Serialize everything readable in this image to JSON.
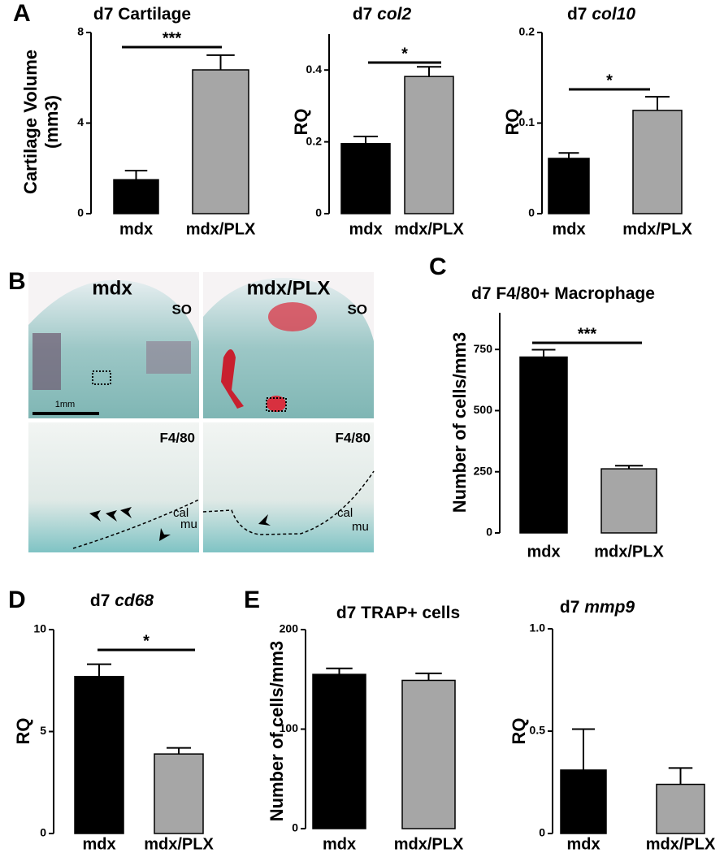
{
  "panels": [
    "A",
    "B",
    "C",
    "D",
    "E"
  ],
  "histology": {
    "columns": [
      "mdx",
      "mdx/PLX"
    ],
    "stain_top": "SO",
    "stain_bottom": "F4/80",
    "scale_bar": "1mm",
    "labels": [
      "cal",
      "mu"
    ]
  },
  "chart_data": [
    {
      "type": "bar",
      "title": "d7 Cartilage",
      "ylabel": [
        "Cartilage Volume",
        "(mm3)"
      ],
      "categories": [
        "mdx",
        "mdx/PLX"
      ],
      "values": [
        1.5,
        6.35
      ],
      "errors": [
        0.4,
        0.65
      ],
      "colors": [
        "#000000",
        "#a6a6a6"
      ],
      "ylim": [
        0,
        8
      ],
      "yticks": [
        0,
        4,
        8
      ],
      "significance": "***"
    },
    {
      "type": "bar",
      "title": "d7",
      "gene": "col2",
      "ylabel": [
        "RQ"
      ],
      "categories": [
        "mdx",
        "mdx/PLX"
      ],
      "values": [
        0.195,
        0.382
      ],
      "errors": [
        0.02,
        0.027
      ],
      "colors": [
        "#000000",
        "#a6a6a6"
      ],
      "ylim": [
        0,
        0.5
      ],
      "yticks": [
        0,
        0.2,
        0.4
      ],
      "significance": "*"
    },
    {
      "type": "bar",
      "title": "d7",
      "gene": "col10",
      "ylabel": [
        "RQ"
      ],
      "categories": [
        "mdx",
        "mdx/PLX"
      ],
      "values": [
        0.061,
        0.114
      ],
      "errors": [
        0.006,
        0.015
      ],
      "colors": [
        "#000000",
        "#a6a6a6"
      ],
      "ylim": [
        0,
        0.2
      ],
      "yticks": [
        0,
        0.1,
        0.2
      ],
      "significance": "*"
    },
    {
      "type": "bar",
      "title": "d7 F4/80+ Macrophage",
      "ylabel": [
        "Number of cells/mm3"
      ],
      "categories": [
        "mdx",
        "mdx/PLX"
      ],
      "values": [
        719,
        262
      ],
      "errors": [
        30,
        13
      ],
      "colors": [
        "#000000",
        "#a6a6a6"
      ],
      "ylim": [
        0,
        900
      ],
      "yticks": [
        0,
        250,
        500,
        750
      ],
      "significance": "***"
    },
    {
      "type": "bar",
      "title": "d7",
      "gene": "cd68",
      "ylabel": [
        "RQ"
      ],
      "categories": [
        "mdx",
        "mdx/PLX"
      ],
      "values": [
        7.7,
        3.9
      ],
      "errors": [
        0.6,
        0.3
      ],
      "colors": [
        "#000000",
        "#a6a6a6"
      ],
      "ylim": [
        0,
        10
      ],
      "yticks": [
        0,
        5,
        10
      ],
      "significance": "*"
    },
    {
      "type": "bar",
      "title": "d7 TRAP+ cells",
      "ylabel": [
        "Number of cells/mm3"
      ],
      "categories": [
        "mdx",
        "mdx/PLX"
      ],
      "values": [
        155,
        149
      ],
      "errors": [
        6,
        7
      ],
      "colors": [
        "#000000",
        "#a6a6a6"
      ],
      "ylim": [
        0,
        200
      ],
      "yticks": [
        0,
        100,
        200
      ]
    },
    {
      "type": "bar",
      "title": "d7",
      "gene": "mmp9",
      "ylabel": [
        "RQ"
      ],
      "categories": [
        "mdx",
        "mdx/PLX"
      ],
      "values": [
        0.31,
        0.24
      ],
      "errors": [
        0.2,
        0.08
      ],
      "colors": [
        "#000000",
        "#a6a6a6"
      ],
      "ylim": [
        0,
        1
      ],
      "yticks": [
        0,
        0.5,
        {
          "value": 1,
          "label": "1.0"
        }
      ]
    }
  ]
}
